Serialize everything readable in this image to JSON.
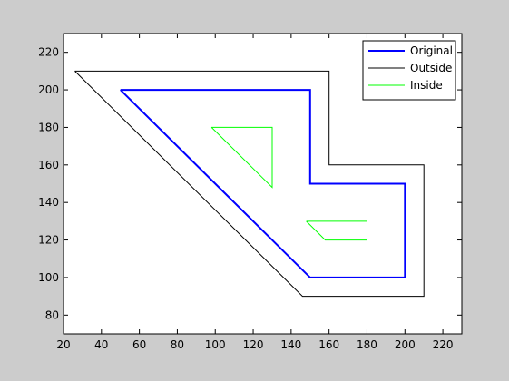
{
  "chart_data": {
    "type": "line",
    "title": "",
    "xlabel": "",
    "ylabel": "",
    "xlim": [
      20,
      230
    ],
    "ylim": [
      70,
      230
    ],
    "xticks": [
      20,
      40,
      60,
      80,
      100,
      120,
      140,
      160,
      180,
      200,
      220
    ],
    "yticks": [
      80,
      100,
      120,
      140,
      160,
      180,
      200,
      220
    ],
    "xtick_labels": [
      "20",
      "40",
      "60",
      "80",
      "100",
      "120",
      "140",
      "160",
      "180",
      "200",
      "220"
    ],
    "ytick_labels": [
      "80",
      "100",
      "120",
      "140",
      "160",
      "180",
      "200",
      "220"
    ],
    "grid": false,
    "legend_position": "top-right",
    "series": [
      {
        "name": "Original",
        "color": "#0000ff",
        "width": "thick",
        "paths": [
          {
            "x": [
              50,
              150,
              150,
              200,
              200,
              150,
              50
            ],
            "y": [
              200,
              200,
              150,
              150,
              100,
              100,
              200
            ]
          }
        ]
      },
      {
        "name": "Outside",
        "color": "#000000",
        "width": "thin",
        "paths": [
          {
            "x": [
              26,
              160,
              160,
              210,
              210,
              146,
              26
            ],
            "y": [
              210,
              210,
              160,
              160,
              90,
              90,
              210
            ]
          }
        ]
      },
      {
        "name": "Inside",
        "color": "#00ff00",
        "width": "thin",
        "paths": [
          {
            "x": [
              98,
              130,
              130,
              98
            ],
            "y": [
              180,
              180,
              148,
              180
            ]
          },
          {
            "x": [
              148,
              180,
              180,
              158,
              148
            ],
            "y": [
              130,
              130,
              120,
              120,
              130
            ]
          }
        ]
      }
    ]
  }
}
